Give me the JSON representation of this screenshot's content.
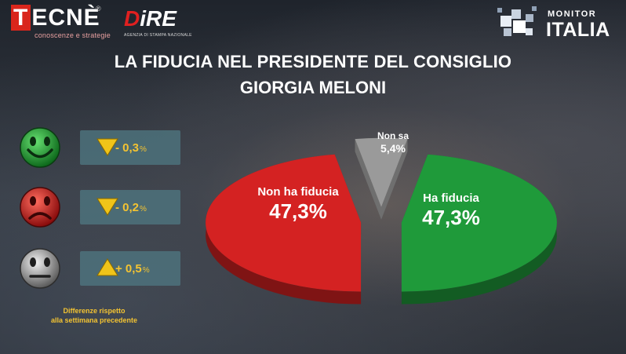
{
  "logos": {
    "tecne": {
      "initial": "T",
      "rest": "ECNÈ",
      "reg": "®",
      "tagline": "conoscenze e strategie"
    },
    "dire": {
      "d": "D",
      "rest": "iRE",
      "tagline": "AGENZIA DI STAMPA NAZIONALE"
    },
    "monitor": {
      "top": "MONITOR",
      "main": "ITALIA"
    }
  },
  "title": {
    "line1": "LA FIDUCIA NEL PRESIDENTE DEL CONSIGLIO",
    "line2": "GIORGIA MELONI"
  },
  "changes": [
    {
      "face": "green-smiley-icon",
      "color": "#1e9a34",
      "direction": "down",
      "value": "- 0,3",
      "unit": "%"
    },
    {
      "face": "red-frowny-icon",
      "color": "#c81d1d",
      "direction": "down",
      "value": "- 0,2",
      "unit": "%"
    },
    {
      "face": "grey-neutral-icon",
      "color": "#8a8a8a",
      "direction": "up",
      "value": "+ 0,5",
      "unit": "%"
    }
  ],
  "note": {
    "line1": "Differenze rispetto",
    "line2": "alla settimana precedente"
  },
  "chart_data": {
    "type": "pie",
    "slices": [
      {
        "label": "Ha fiducia",
        "display": "47,3%",
        "value": 47.3,
        "color": "#1f9a3a"
      },
      {
        "label": "Non sa",
        "display": "5,4%",
        "value": 5.4,
        "color": "#9a9a9a"
      },
      {
        "label": "Non ha fiducia",
        "display": "47,3%",
        "value": 47.3,
        "color": "#d42222"
      }
    ]
  }
}
